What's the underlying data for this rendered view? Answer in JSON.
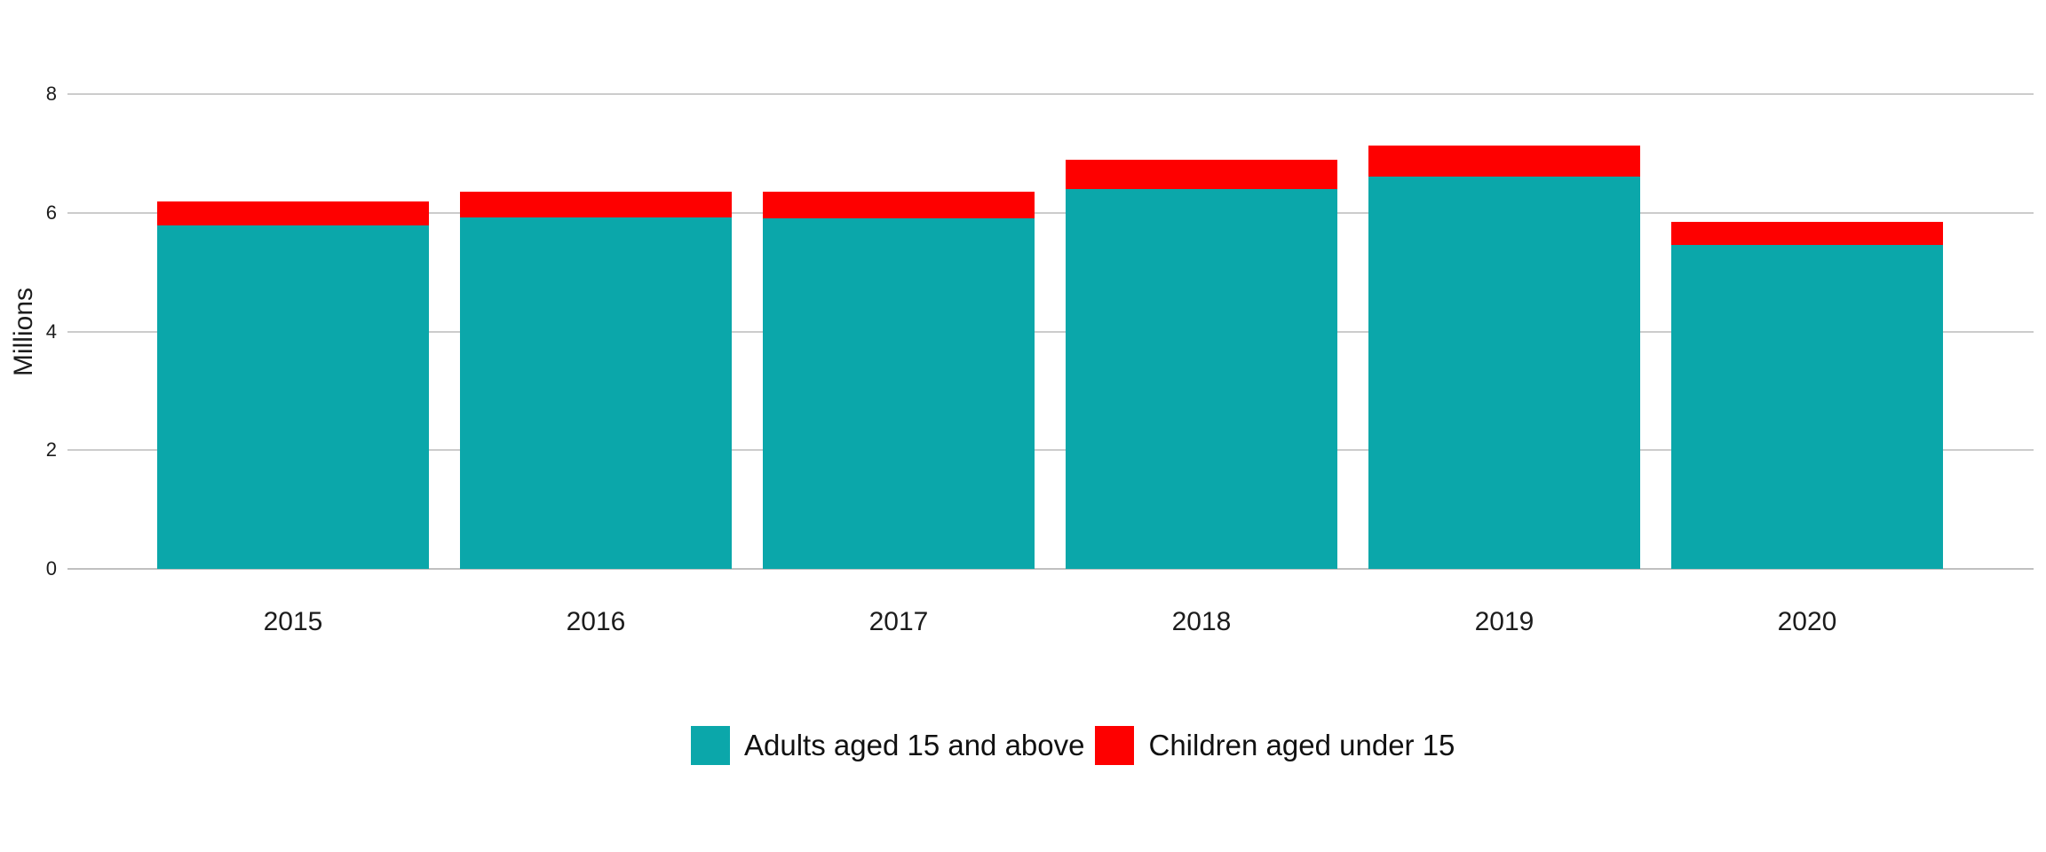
{
  "chart_data": {
    "type": "bar",
    "stacked": true,
    "title": "",
    "xlabel": "",
    "ylabel": "Millions",
    "categories": [
      "2015",
      "2016",
      "2017",
      "2018",
      "2019",
      "2020"
    ],
    "series": [
      {
        "name": "Adults aged 15 and above",
        "color": "#0ba7aa",
        "values": [
          5.79,
          5.92,
          5.91,
          6.4,
          6.61,
          5.46
        ]
      },
      {
        "name": "Children aged under 15",
        "color": "#fe0000",
        "values": [
          0.4,
          0.44,
          0.44,
          0.49,
          0.52,
          0.38
        ]
      }
    ],
    "totals": [
      6.19,
      6.36,
      6.35,
      6.89,
      7.13,
      5.84
    ],
    "ylim": [
      0,
      8
    ],
    "yticks": [
      0,
      2,
      4,
      6,
      8
    ],
    "grid": true,
    "gridline_color": "#cccccc",
    "axis_text_color": "#1c1c1c",
    "legend_position": "bottom",
    "legend": [
      {
        "label": "Adults aged 15 and above",
        "color": "#0ba7aa"
      },
      {
        "label": "Children aged under 15",
        "color": "#fe0000"
      }
    ]
  }
}
